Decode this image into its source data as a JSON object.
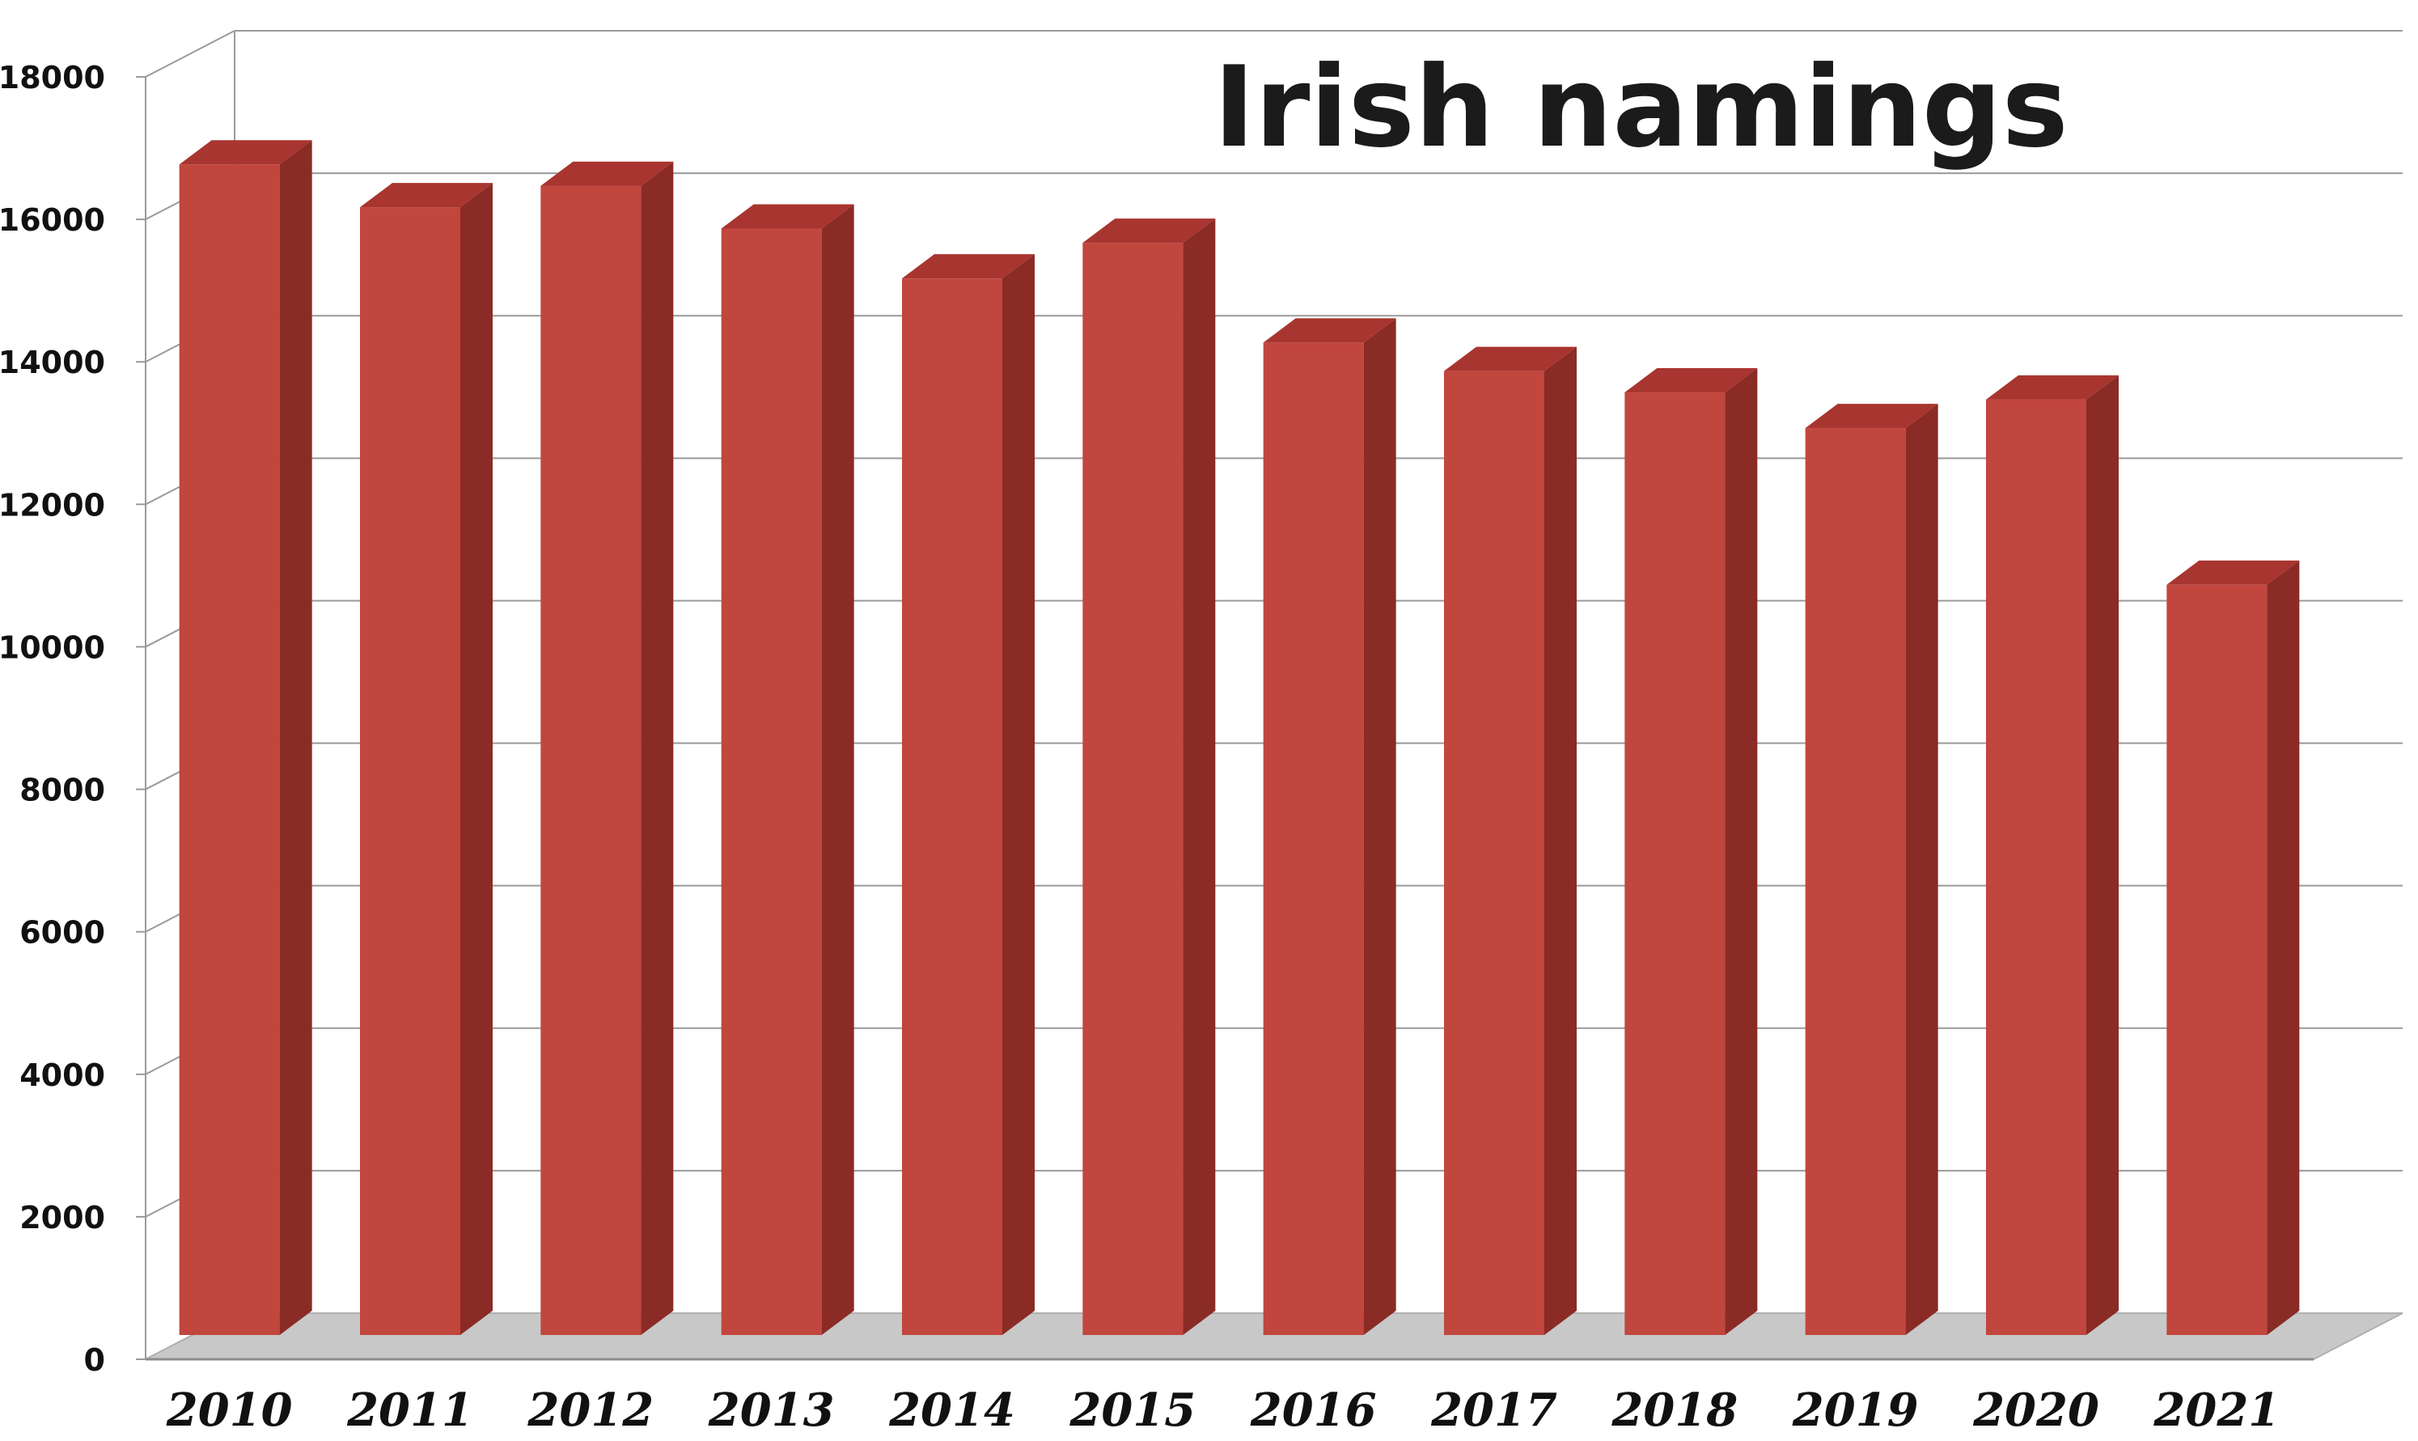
{
  "chart_data": {
    "type": "bar",
    "title": "Irish namings",
    "xlabel": "",
    "ylabel": "",
    "categories": [
      "2010",
      "2011",
      "2012",
      "2013",
      "2014",
      "2015",
      "2016",
      "2017",
      "2018",
      "2019",
      "2020",
      "2021"
    ],
    "values": [
      16600,
      16000,
      16300,
      15700,
      15000,
      15500,
      14100,
      13700,
      13400,
      12900,
      13300,
      10700
    ],
    "ylim": [
      0,
      18000
    ],
    "yticks": [
      "0",
      "2000",
      "4000",
      "6000",
      "8000",
      "10000",
      "12000",
      "14000",
      "16000",
      "18000"
    ],
    "grid": true,
    "style": "3d-bar",
    "colors": {
      "bar_front": "#c1463e",
      "bar_side": "#8a2b26",
      "bar_top": "#a8352f",
      "gridline": "#9a9a9a",
      "floor": "#c8c8c8"
    }
  }
}
